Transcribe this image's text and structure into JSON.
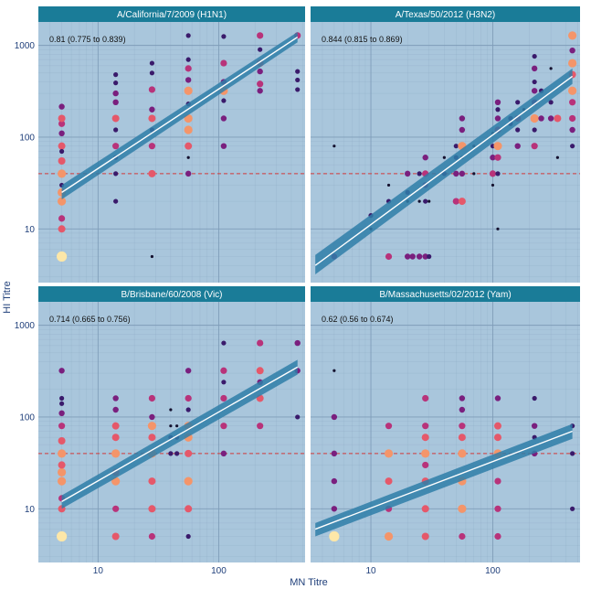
{
  "chart_data": {
    "type": "scatter",
    "xlabel": "MN Titre",
    "ylabel": "HI Titre",
    "x_scale": "log",
    "y_scale": "log",
    "xlim": [
      3.2,
      520
    ],
    "ylim": [
      2.6,
      1800
    ],
    "x_ticks": [
      10,
      100
    ],
    "y_ticks": [
      10,
      100,
      1000
    ],
    "threshold_y": 40,
    "grid": true,
    "colors": {
      "panel_bg": "#a9c6dc",
      "strip_bg": "#1a7c98",
      "grid": "#7f9db9",
      "threshold": "#d23a3a",
      "fit_line": "#ffffff",
      "fit_band": "#2f7ea8",
      "point_scale": [
        "#14102e",
        "#3a1a6b",
        "#7a1f7e",
        "#b8337a",
        "#e5586a",
        "#f4956a",
        "#fde7a8"
      ]
    },
    "panels": [
      {
        "title": "A/California/7/2009 (H1N1)",
        "correlation": "0.81 (0.775 to 0.839)",
        "fit": {
          "x": [
            5,
            450
          ],
          "y": [
            25,
            1230
          ],
          "y_lo": [
            21,
            1080
          ],
          "y_hi": [
            30,
            1400
          ]
        },
        "points": [
          [
            5,
            5,
            6
          ],
          [
            5,
            10,
            4
          ],
          [
            5,
            13,
            3
          ],
          [
            5,
            20,
            5
          ],
          [
            5,
            25,
            5
          ],
          [
            5,
            40,
            5
          ],
          [
            5,
            55,
            4
          ],
          [
            5,
            80,
            4
          ],
          [
            5,
            110,
            2
          ],
          [
            5,
            140,
            3
          ],
          [
            5,
            160,
            4
          ],
          [
            5,
            215,
            2
          ],
          [
            5,
            70,
            1
          ],
          [
            5,
            30,
            1
          ],
          [
            14,
            20,
            1
          ],
          [
            14,
            40,
            1
          ],
          [
            14,
            60,
            1
          ],
          [
            14,
            80,
            3
          ],
          [
            14,
            120,
            1
          ],
          [
            14,
            160,
            4
          ],
          [
            14,
            240,
            2
          ],
          [
            14,
            300,
            2
          ],
          [
            14,
            390,
            1
          ],
          [
            14,
            480,
            1
          ],
          [
            28,
            5,
            0
          ],
          [
            28,
            40,
            4
          ],
          [
            28,
            80,
            3
          ],
          [
            28,
            120,
            1
          ],
          [
            28,
            160,
            4
          ],
          [
            28,
            200,
            2
          ],
          [
            28,
            330,
            3
          ],
          [
            28,
            500,
            1
          ],
          [
            28,
            640,
            1
          ],
          [
            56,
            40,
            2
          ],
          [
            56,
            60,
            0
          ],
          [
            56,
            80,
            4
          ],
          [
            56,
            120,
            5
          ],
          [
            56,
            160,
            5
          ],
          [
            56,
            230,
            1
          ],
          [
            56,
            320,
            5
          ],
          [
            56,
            420,
            2
          ],
          [
            56,
            560,
            3
          ],
          [
            56,
            700,
            1
          ],
          [
            56,
            1280,
            1
          ],
          [
            110,
            80,
            2
          ],
          [
            110,
            160,
            2
          ],
          [
            110,
            250,
            1
          ],
          [
            110,
            320,
            5
          ],
          [
            110,
            400,
            2
          ],
          [
            110,
            640,
            3
          ],
          [
            110,
            1250,
            1
          ],
          [
            220,
            320,
            2
          ],
          [
            220,
            380,
            3
          ],
          [
            220,
            520,
            2
          ],
          [
            220,
            640,
            4
          ],
          [
            220,
            900,
            1
          ],
          [
            220,
            1280,
            3
          ],
          [
            450,
            330,
            1
          ],
          [
            450,
            420,
            1
          ],
          [
            450,
            520,
            1
          ],
          [
            450,
            1280,
            3
          ]
        ]
      },
      {
        "title": "A/Texas/50/2012 (H3N2)",
        "correlation": "0.844 (0.815 to 0.869)",
        "fit": {
          "x": [
            3.5,
            450
          ],
          "y": [
            4,
            460
          ],
          "y_lo": [
            3.2,
            380
          ],
          "y_hi": [
            5.2,
            560
          ]
        },
        "points": [
          [
            5,
            5,
            2
          ],
          [
            5,
            80,
            0
          ],
          [
            10,
            14,
            1
          ],
          [
            10,
            10,
            0
          ],
          [
            14,
            5,
            3
          ],
          [
            14,
            20,
            1
          ],
          [
            14,
            30,
            0
          ],
          [
            20,
            5,
            2
          ],
          [
            20,
            40,
            2
          ],
          [
            20,
            20,
            0
          ],
          [
            20,
            25,
            1
          ],
          [
            22,
            5,
            2
          ],
          [
            25,
            5,
            2
          ],
          [
            25,
            40,
            1
          ],
          [
            25,
            20,
            0
          ],
          [
            28,
            5,
            2
          ],
          [
            28,
            20,
            1
          ],
          [
            28,
            30,
            2
          ],
          [
            28,
            40,
            3
          ],
          [
            28,
            60,
            2
          ],
          [
            30,
            5,
            1
          ],
          [
            30,
            20,
            0
          ],
          [
            40,
            40,
            1
          ],
          [
            40,
            60,
            0
          ],
          [
            50,
            20,
            3
          ],
          [
            50,
            40,
            2
          ],
          [
            50,
            60,
            1
          ],
          [
            50,
            80,
            1
          ],
          [
            56,
            20,
            4
          ],
          [
            56,
            40,
            2
          ],
          [
            56,
            60,
            0
          ],
          [
            56,
            80,
            5
          ],
          [
            56,
            120,
            2
          ],
          [
            56,
            160,
            2
          ],
          [
            70,
            40,
            0
          ],
          [
            70,
            80,
            0
          ],
          [
            100,
            30,
            0
          ],
          [
            100,
            40,
            3
          ],
          [
            100,
            60,
            2
          ],
          [
            100,
            80,
            1
          ],
          [
            100,
            110,
            0
          ],
          [
            110,
            10,
            0
          ],
          [
            110,
            40,
            1
          ],
          [
            110,
            60,
            3
          ],
          [
            110,
            80,
            5
          ],
          [
            110,
            120,
            3
          ],
          [
            110,
            160,
            2
          ],
          [
            110,
            200,
            1
          ],
          [
            110,
            240,
            2
          ],
          [
            140,
            140,
            1
          ],
          [
            140,
            160,
            1
          ],
          [
            160,
            80,
            2
          ],
          [
            160,
            120,
            1
          ],
          [
            160,
            160,
            3
          ],
          [
            160,
            240,
            1
          ],
          [
            180,
            200,
            0
          ],
          [
            220,
            80,
            3
          ],
          [
            220,
            120,
            1
          ],
          [
            220,
            160,
            5
          ],
          [
            220,
            240,
            2
          ],
          [
            220,
            320,
            2
          ],
          [
            220,
            400,
            1
          ],
          [
            220,
            560,
            2
          ],
          [
            220,
            760,
            1
          ],
          [
            250,
            320,
            1
          ],
          [
            250,
            160,
            2
          ],
          [
            300,
            160,
            2
          ],
          [
            300,
            240,
            1
          ],
          [
            300,
            560,
            0
          ],
          [
            340,
            60,
            0
          ],
          [
            340,
            160,
            4
          ],
          [
            450,
            80,
            1
          ],
          [
            450,
            120,
            2
          ],
          [
            450,
            160,
            3
          ],
          [
            450,
            240,
            3
          ],
          [
            450,
            320,
            5
          ],
          [
            450,
            640,
            5
          ],
          [
            450,
            1280,
            5
          ],
          [
            450,
            480,
            4
          ],
          [
            450,
            880,
            2
          ]
        ]
      },
      {
        "title": "B/Brisbane/60/2008 (Vic)",
        "correlation": "0.714 (0.665 to 0.756)",
        "fit": {
          "x": [
            5,
            450
          ],
          "y": [
            12,
            350
          ],
          "y_lo": [
            10,
            290
          ],
          "y_hi": [
            14,
            420
          ]
        },
        "points": [
          [
            5,
            5,
            6
          ],
          [
            5,
            10,
            4
          ],
          [
            5,
            13,
            3
          ],
          [
            5,
            20,
            5
          ],
          [
            5,
            25,
            5
          ],
          [
            5,
            30,
            4
          ],
          [
            5,
            40,
            5
          ],
          [
            5,
            55,
            4
          ],
          [
            5,
            80,
            3
          ],
          [
            5,
            110,
            2
          ],
          [
            5,
            140,
            1
          ],
          [
            5,
            160,
            1
          ],
          [
            5,
            320,
            2
          ],
          [
            14,
            5,
            4
          ],
          [
            14,
            10,
            3
          ],
          [
            14,
            20,
            5
          ],
          [
            14,
            25,
            4
          ],
          [
            14,
            40,
            5
          ],
          [
            14,
            60,
            4
          ],
          [
            14,
            80,
            4
          ],
          [
            14,
            120,
            2
          ],
          [
            14,
            160,
            2
          ],
          [
            28,
            5,
            3
          ],
          [
            28,
            10,
            4
          ],
          [
            28,
            20,
            4
          ],
          [
            28,
            40,
            5
          ],
          [
            28,
            60,
            4
          ],
          [
            28,
            80,
            5
          ],
          [
            28,
            100,
            2
          ],
          [
            28,
            160,
            3
          ],
          [
            40,
            40,
            1
          ],
          [
            40,
            60,
            1
          ],
          [
            40,
            80,
            0
          ],
          [
            40,
            120,
            0
          ],
          [
            45,
            40,
            1
          ],
          [
            45,
            60,
            1
          ],
          [
            45,
            80,
            0
          ],
          [
            56,
            5,
            1
          ],
          [
            56,
            10,
            4
          ],
          [
            56,
            20,
            5
          ],
          [
            56,
            40,
            4
          ],
          [
            56,
            60,
            5
          ],
          [
            56,
            80,
            5
          ],
          [
            56,
            120,
            1
          ],
          [
            56,
            160,
            3
          ],
          [
            56,
            320,
            2
          ],
          [
            110,
            40,
            2
          ],
          [
            110,
            80,
            3
          ],
          [
            110,
            160,
            3
          ],
          [
            110,
            240,
            1
          ],
          [
            110,
            320,
            3
          ],
          [
            110,
            640,
            1
          ],
          [
            220,
            80,
            3
          ],
          [
            220,
            160,
            4
          ],
          [
            220,
            240,
            2
          ],
          [
            220,
            320,
            4
          ],
          [
            220,
            640,
            3
          ],
          [
            450,
            100,
            1
          ],
          [
            450,
            320,
            2
          ],
          [
            450,
            640,
            2
          ]
        ]
      },
      {
        "title": "B/Massachusetts/02/2012 (Yam)",
        "correlation": "0.62 (0.56 to 0.674)",
        "fit": {
          "x": [
            3.5,
            450
          ],
          "y": [
            6,
            70
          ],
          "y_lo": [
            5,
            58
          ],
          "y_hi": [
            7,
            84
          ]
        },
        "points": [
          [
            5,
            5,
            6
          ],
          [
            5,
            10,
            2
          ],
          [
            5,
            20,
            2
          ],
          [
            5,
            40,
            2
          ],
          [
            5,
            100,
            2
          ],
          [
            5,
            320,
            0
          ],
          [
            14,
            5,
            5
          ],
          [
            14,
            10,
            3
          ],
          [
            14,
            20,
            4
          ],
          [
            14,
            40,
            5
          ],
          [
            14,
            80,
            3
          ],
          [
            28,
            5,
            4
          ],
          [
            28,
            10,
            4
          ],
          [
            28,
            20,
            4
          ],
          [
            28,
            30,
            3
          ],
          [
            28,
            40,
            5
          ],
          [
            28,
            60,
            4
          ],
          [
            28,
            80,
            3
          ],
          [
            28,
            160,
            3
          ],
          [
            56,
            5,
            3
          ],
          [
            56,
            10,
            5
          ],
          [
            56,
            20,
            5
          ],
          [
            56,
            40,
            5
          ],
          [
            56,
            60,
            4
          ],
          [
            56,
            80,
            3
          ],
          [
            56,
            120,
            2
          ],
          [
            56,
            160,
            2
          ],
          [
            110,
            5,
            3
          ],
          [
            110,
            10,
            3
          ],
          [
            110,
            20,
            3
          ],
          [
            110,
            40,
            5
          ],
          [
            110,
            60,
            4
          ],
          [
            110,
            80,
            4
          ],
          [
            110,
            160,
            2
          ],
          [
            220,
            40,
            2
          ],
          [
            220,
            60,
            1
          ],
          [
            220,
            80,
            2
          ],
          [
            220,
            160,
            1
          ],
          [
            450,
            10,
            1
          ],
          [
            450,
            40,
            1
          ],
          [
            450,
            80,
            1
          ]
        ]
      }
    ]
  }
}
